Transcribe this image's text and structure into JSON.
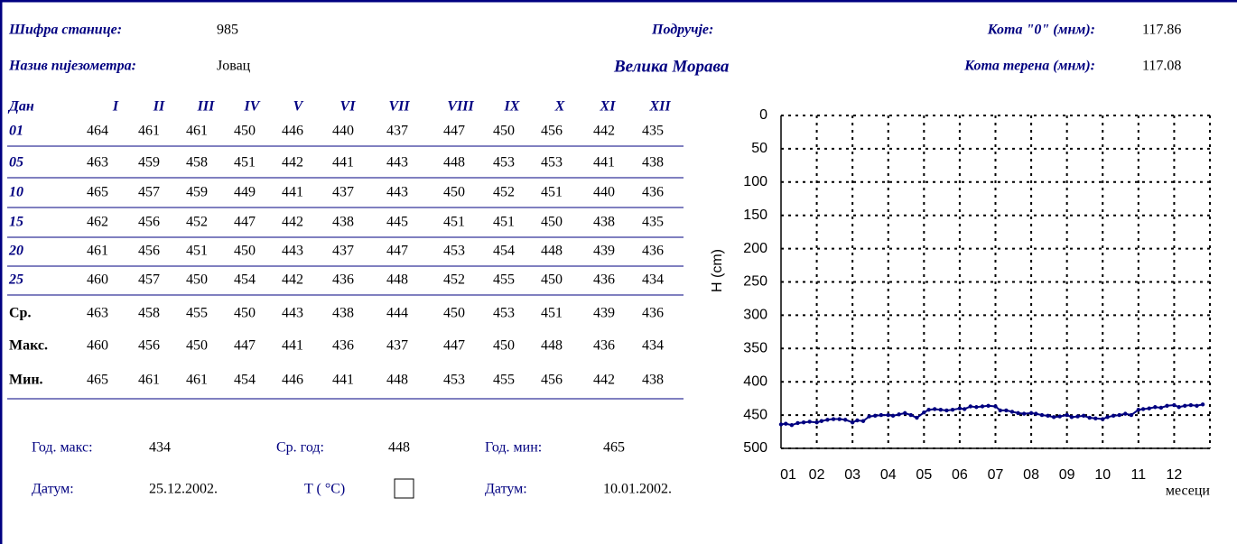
{
  "header": {
    "station_code_label": "Шифра станице:",
    "station_code": "985",
    "name_label": "Назив пијезометра:",
    "name": "Јовац",
    "area_label": "Подручје:",
    "area": "Велика Морава",
    "kota0_label": "Кота \"0\" (мнм):",
    "kota0": "117.86",
    "terrain_label": "Кота терена (мнм):",
    "terrain": "117.08"
  },
  "table": {
    "day_header": "Дан",
    "months": [
      "I",
      "II",
      "III",
      "IV",
      "V",
      "VI",
      "VII",
      "VIII",
      "IX",
      "X",
      "XI",
      "XII"
    ],
    "rows": [
      {
        "day": "01",
        "values": [
          464,
          461,
          461,
          450,
          446,
          440,
          437,
          447,
          450,
          456,
          442,
          435
        ]
      },
      {
        "day": "05",
        "values": [
          463,
          459,
          458,
          451,
          442,
          441,
          443,
          448,
          453,
          453,
          441,
          438
        ]
      },
      {
        "day": "10",
        "values": [
          465,
          457,
          459,
          449,
          441,
          437,
          443,
          450,
          452,
          451,
          440,
          436
        ]
      },
      {
        "day": "15",
        "values": [
          462,
          456,
          452,
          447,
          442,
          438,
          445,
          451,
          451,
          450,
          438,
          435
        ]
      },
      {
        "day": "20",
        "values": [
          461,
          456,
          451,
          450,
          443,
          437,
          447,
          453,
          454,
          448,
          439,
          436
        ]
      },
      {
        "day": "25",
        "values": [
          460,
          457,
          450,
          454,
          442,
          436,
          448,
          452,
          455,
          450,
          436,
          434
        ]
      }
    ],
    "stats": [
      {
        "label": "Ср.",
        "values": [
          463,
          458,
          455,
          450,
          443,
          438,
          444,
          450,
          453,
          451,
          439,
          436
        ]
      },
      {
        "label": "Макс.",
        "values": [
          460,
          456,
          450,
          447,
          441,
          436,
          437,
          447,
          450,
          448,
          436,
          434
        ]
      },
      {
        "label": "Мин.",
        "values": [
          465,
          461,
          461,
          454,
          446,
          441,
          448,
          453,
          455,
          456,
          442,
          438
        ]
      }
    ]
  },
  "summary": {
    "year_max_label": "Год. макс:",
    "year_max": 434,
    "year_avg_label": "Ср. год:",
    "year_avg": 448,
    "year_min_label": "Год. мин:",
    "year_min": 465,
    "date_max_label": "Датум:",
    "date_max": "25.12.2002.",
    "temp_label": "T ( °C)",
    "date_min_label": "Датум:",
    "date_min": "10.01.2002."
  },
  "chart": {
    "type": "line",
    "ylabel": "H (cm)",
    "xlabel": "месеци",
    "categories": [
      "01",
      "02",
      "03",
      "04",
      "05",
      "06",
      "07",
      "08",
      "09",
      "10",
      "11",
      "12"
    ],
    "ylim": [
      0,
      500
    ],
    "yticks": [
      0,
      50,
      100,
      150,
      200,
      250,
      300,
      350,
      400,
      450,
      500
    ],
    "inverted": true,
    "grid": true,
    "color": "#000080"
  }
}
